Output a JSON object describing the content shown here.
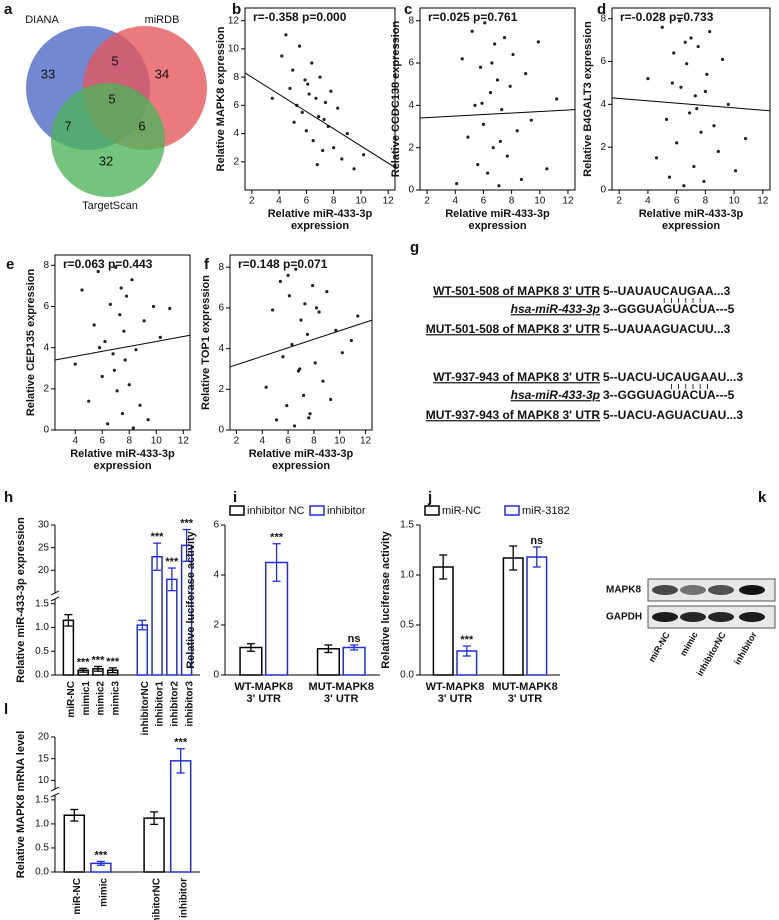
{
  "chart_data": [
    {
      "type": "venn",
      "panel": "a",
      "sets": [
        {
          "name": "DIANA",
          "color": "#4a67c4"
        },
        {
          "name": "miRDB",
          "color": "#e5545a"
        },
        {
          "name": "TargetScan",
          "color": "#4db359"
        }
      ],
      "regions": [
        [
          0
        ],
        [
          0,
          1
        ],
        [
          1
        ],
        [
          0,
          1,
          2
        ],
        [
          0,
          2
        ],
        [
          1,
          2
        ],
        [
          2
        ]
      ],
      "values": [
        33,
        5,
        34,
        5,
        7,
        6,
        32
      ]
    },
    {
      "type": "scatter",
      "panel": "b",
      "annotation": "r=-0.358 p=0.000",
      "xlabel": "Relative miR-433-3p expression",
      "ylabel": "Relative MAPK8 expression",
      "xlim": [
        1.5,
        12.5
      ],
      "ylim": [
        0,
        12.9
      ],
      "xticks": [
        2,
        4,
        6,
        8,
        10,
        12
      ],
      "yticks": [
        2,
        4,
        6,
        8,
        10,
        12
      ],
      "color": "#222222",
      "x": [
        4.2,
        4.8,
        5.0,
        5.3,
        5.5,
        5.7,
        5.9,
        6.0,
        6.2,
        6.4,
        6.5,
        6.7,
        6.9,
        7.0,
        7.2,
        7.4,
        7.6,
        7.8,
        8.0,
        8.3,
        8.6,
        9.0,
        9.5,
        10.2,
        3.5,
        4.5,
        5.1,
        6.1,
        6.8,
        7.3
      ],
      "y": [
        9.5,
        7.2,
        8.5,
        6.0,
        10.2,
        5.5,
        7.8,
        4.2,
        6.8,
        9.0,
        3.5,
        6.5,
        5.2,
        8.0,
        2.8,
        6.2,
        4.5,
        7.0,
        3.0,
        5.8,
        2.2,
        4.0,
        1.5,
        2.5,
        6.5,
        11.0,
        4.8,
        7.5,
        1.8,
        5.0
      ],
      "fit": {
        "x": [
          1.5,
          12.5
        ],
        "y": [
          8.3,
          1.6
        ]
      }
    },
    {
      "type": "scatter",
      "panel": "c",
      "annotation": "r=0.025 p=0.761",
      "xlabel": "Relative miR-433-3p expression",
      "ylabel": "Relative CCDC138 expression",
      "xlim": [
        1.5,
        12.5
      ],
      "ylim": [
        0,
        8.6
      ],
      "xticks": [
        2,
        4,
        6,
        8,
        10,
        12
      ],
      "yticks": [
        0,
        2,
        4,
        6,
        8
      ],
      "color": "#222222",
      "x": [
        4.1,
        4.5,
        4.9,
        5.2,
        5.4,
        5.6,
        5.8,
        6.0,
        6.1,
        6.3,
        6.5,
        6.7,
        6.8,
        7.0,
        7.1,
        7.3,
        7.5,
        7.7,
        7.9,
        8.1,
        8.4,
        8.7,
        9.0,
        9.4,
        9.9,
        10.5,
        11.2,
        6.6,
        7.2,
        5.9
      ],
      "y": [
        0.3,
        6.2,
        2.5,
        7.5,
        4.0,
        1.2,
        5.8,
        3.1,
        7.9,
        0.8,
        4.6,
        2.0,
        6.9,
        5.2,
        0.2,
        3.8,
        7.2,
        1.6,
        4.9,
        6.4,
        2.8,
        0.5,
        5.5,
        3.3,
        7.0,
        1.0,
        4.3,
        6.0,
        2.3,
        4.1
      ],
      "fit": {
        "x": [
          1.5,
          12.5
        ],
        "y": [
          3.4,
          3.8
        ]
      }
    },
    {
      "type": "scatter",
      "panel": "d",
      "annotation": "r=-0.028 p=0.733",
      "xlabel": "Relative miR-433-3p expression",
      "ylabel": "Relative B4GALT3 expression",
      "xlim": [
        1.5,
        12.5
      ],
      "ylim": [
        0,
        8.5
      ],
      "xticks": [
        2,
        4,
        6,
        8,
        10,
        12
      ],
      "yticks": [
        0,
        2,
        4,
        6,
        8
      ],
      "color": "#222222",
      "x": [
        4.0,
        4.6,
        5.0,
        5.3,
        5.5,
        5.8,
        6.0,
        6.2,
        6.3,
        6.5,
        6.7,
        6.9,
        7.0,
        7.2,
        7.3,
        7.5,
        7.7,
        7.9,
        8.1,
        8.3,
        8.6,
        8.9,
        9.2,
        9.6,
        10.1,
        10.8,
        5.7,
        6.6,
        7.4,
        8.0
      ],
      "y": [
        5.2,
        1.5,
        7.6,
        3.3,
        0.6,
        6.4,
        2.2,
        7.9,
        4.8,
        0.2,
        5.9,
        3.6,
        7.1,
        1.1,
        4.4,
        6.7,
        2.7,
        0.4,
        5.4,
        7.4,
        3.0,
        1.8,
        6.1,
        4.0,
        0.9,
        2.4,
        5.0,
        6.9,
        3.8,
        4.6
      ],
      "fit": {
        "x": [
          1.5,
          12.5
        ],
        "y": [
          4.3,
          3.7
        ]
      }
    },
    {
      "type": "scatter",
      "panel": "e",
      "annotation": "r=0.063 p=0.443",
      "xlabel": "Relative miR-433-3p expression",
      "ylabel": "Relative CEP135 expression",
      "xlim": [
        2.5,
        12.5
      ],
      "ylim": [
        0,
        8.5
      ],
      "xticks": [
        4,
        6,
        8,
        10,
        12
      ],
      "yticks": [
        0,
        2,
        4,
        6,
        8
      ],
      "color": "#222222",
      "x": [
        4.0,
        4.5,
        5.0,
        5.4,
        5.7,
        6.0,
        6.2,
        6.4,
        6.6,
        6.8,
        7.0,
        7.1,
        7.3,
        7.5,
        7.6,
        7.8,
        8.0,
        8.2,
        8.5,
        8.8,
        9.1,
        9.4,
        9.8,
        10.3,
        11.0,
        6.9,
        7.4,
        5.8,
        8.3,
        7.7
      ],
      "y": [
        3.2,
        6.8,
        1.4,
        5.1,
        7.7,
        2.6,
        4.3,
        0.3,
        6.1,
        3.7,
        7.9,
        1.9,
        5.6,
        0.8,
        4.8,
        6.5,
        2.2,
        7.3,
        3.9,
        1.2,
        5.3,
        0.5,
        6.0,
        4.5,
        5.9,
        2.9,
        6.9,
        4.0,
        0.1,
        3.4
      ],
      "fit": {
        "x": [
          2.5,
          12.5
        ],
        "y": [
          3.4,
          4.6
        ]
      }
    },
    {
      "type": "scatter",
      "panel": "f",
      "annotation": "r=0.148 p=0.071",
      "xlabel": "Relative miR-433-3p expression",
      "ylabel": "Relative TOP1 expression",
      "xlim": [
        1.5,
        12.5
      ],
      "ylim": [
        0,
        8.6
      ],
      "xticks": [
        2,
        4,
        6,
        8,
        10,
        12
      ],
      "yticks": [
        0,
        2,
        4,
        6,
        8
      ],
      "color": "#222222",
      "x": [
        4.3,
        4.8,
        5.1,
        5.4,
        5.6,
        5.9,
        6.1,
        6.3,
        6.5,
        6.6,
        6.8,
        7.0,
        7.2,
        7.3,
        7.5,
        7.7,
        7.9,
        8.1,
        8.4,
        8.7,
        9.0,
        9.3,
        9.7,
        10.2,
        10.9,
        11.4,
        6.0,
        6.9,
        7.6,
        8.2
      ],
      "y": [
        2.1,
        5.9,
        0.5,
        7.3,
        3.6,
        1.2,
        6.6,
        4.2,
        0.2,
        7.9,
        2.9,
        5.4,
        1.7,
        6.2,
        4.7,
        0.8,
        7.1,
        3.3,
        5.8,
        2.4,
        6.8,
        1.5,
        4.9,
        3.8,
        4.4,
        5.6,
        7.6,
        3.0,
        0.6,
        6.0
      ],
      "fit": {
        "x": [
          1.5,
          12.5
        ],
        "y": [
          3.1,
          5.4
        ]
      }
    },
    {
      "type": "alignment",
      "panel": "g",
      "rows": [
        {
          "label": "WT-501-508 of MAPK8 3' UTR",
          "seq": "5--UAUAUCAUGAA...3"
        },
        {
          "label": "hsa-miR-433-3p",
          "seq": "3--GGGUAGUACUA---5"
        },
        {
          "label": "MUT-501-508 of MAPK8 3' UTR",
          "seq": "5--UAUAAGUACUU...3"
        },
        {
          "label": "WT-937-943 of MAPK8 3' UTR",
          "seq": "5--UACU-UCAUGAAU...3"
        },
        {
          "label": "hsa-miR-433-3p",
          "seq": "3--GGGUAGUACUA---5"
        },
        {
          "label": "MUT-937-943 of MAPK8 3' UTR",
          "seq": "5--UACU-AGUACUAU...3"
        }
      ]
    },
    {
      "type": "bar",
      "panel": "h",
      "ylabel": "Relative miR-433-3p expression",
      "categories": [
        "miR-NC",
        "mimic1",
        "mimic2",
        "mimic3",
        "inhibitorNC",
        "inhibitor1",
        "inhibitor2",
        "inhibitor3"
      ],
      "values": [
        1.15,
        0.1,
        0.13,
        0.1,
        1.05,
        23,
        18,
        25.5
      ],
      "errors": [
        0.12,
        0.04,
        0.05,
        0.05,
        0.1,
        3,
        2.5,
        3.5
      ],
      "annotations": [
        null,
        "***",
        "***",
        "***",
        null,
        "***",
        "***",
        "***"
      ],
      "colors": [
        "#000000",
        "#000000",
        "#000000",
        "#000000",
        "#1f2fd6",
        "#1f2fd6",
        "#1f2fd6",
        "#1f2fd6"
      ],
      "ylim": [
        0,
        30
      ],
      "ybreak": [
        1.6,
        15
      ],
      "yticks": [
        {
          "value": 0,
          "label": "0.0"
        },
        {
          "value": 0.5,
          "label": "0.5"
        },
        {
          "value": 1,
          "label": "1.0"
        },
        {
          "value": 1.5,
          "label": "1.5"
        },
        20,
        25,
        30
      ]
    },
    {
      "type": "grouped-bar",
      "panel": "i",
      "ylabel": "Relative luciferase activity",
      "categories": [
        "WT-MAPK8 3' UTR",
        "MUT-MAPK8 3' UTR"
      ],
      "series": [
        {
          "name": "inhibitor NC",
          "color": "#000000",
          "values": [
            1.1,
            1.05
          ],
          "errors": [
            0.15,
            0.15
          ],
          "annotations": [
            null,
            null
          ]
        },
        {
          "name": "inhibitor",
          "color": "#1f2fd6",
          "values": [
            4.5,
            1.1
          ],
          "errors": [
            0.75,
            0.1
          ],
          "annotations": [
            "***",
            "ns"
          ]
        }
      ],
      "ylim": [
        0,
        6
      ],
      "yticks": [
        0,
        2,
        4,
        6
      ],
      "legend": "top"
    },
    {
      "type": "grouped-bar",
      "panel": "j",
      "ylabel": "Relative luciferase activity",
      "categories": [
        "WT-MAPK8 3' UTR",
        "MUT-MAPK8 3' UTR"
      ],
      "series": [
        {
          "name": "miR-NC",
          "color": "#000000",
          "values": [
            1.08,
            1.17
          ],
          "errors": [
            0.12,
            0.12
          ],
          "annotations": [
            null,
            null
          ]
        },
        {
          "name": "miR-3182",
          "color": "#1f2fd6",
          "values": [
            0.24,
            1.18
          ],
          "errors": [
            0.05,
            0.1
          ],
          "annotations": [
            "***",
            "ns"
          ]
        }
      ],
      "ylim": [
        0,
        1.5
      ],
      "yticks": [
        {
          "value": 0,
          "label": "0.0"
        },
        {
          "value": 0.5,
          "label": "0.5"
        },
        {
          "value": 1,
          "label": "1.0"
        },
        {
          "value": 1.5,
          "label": "1.5"
        }
      ],
      "legend": "top"
    },
    {
      "type": "blot",
      "panel": "k",
      "rows": [
        "MAPK8",
        "GAPDH"
      ],
      "lanes": [
        "miR-NC",
        "mimic",
        "inhibitorNC",
        "inhibitor"
      ]
    },
    {
      "type": "bar",
      "panel": "l",
      "ylabel": "Relative MAPK8 mRNA level",
      "categories": [
        "miR-NC",
        "mimic",
        "inhibitorNC",
        "inhibitor"
      ],
      "values": [
        1.18,
        0.18,
        1.12,
        14.5
      ],
      "errors": [
        0.12,
        0.04,
        0.13,
        2.8
      ],
      "annotations": [
        null,
        "***",
        null,
        "***"
      ],
      "colors": [
        "#000000",
        "#1f2fd6",
        "#000000",
        "#1f2fd6"
      ],
      "ylim": [
        0,
        20
      ],
      "ybreak": [
        1.6,
        8
      ],
      "yticks": [
        {
          "value": 0,
          "label": "0.0"
        },
        {
          "value": 0.5,
          "label": "0.5"
        },
        {
          "value": 1,
          "label": "1.0"
        },
        {
          "value": 1.5,
          "label": "1.5"
        },
        10,
        15,
        20
      ]
    }
  ]
}
